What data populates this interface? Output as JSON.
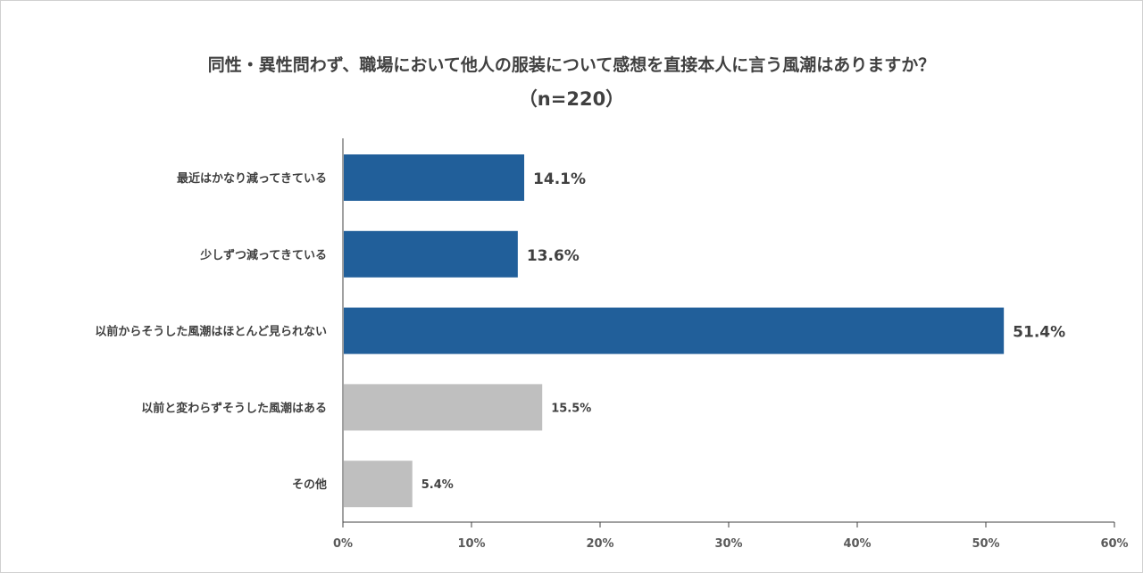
{
  "chart_data": {
    "type": "bar",
    "orientation": "horizontal",
    "title": "同性・異性問わず、職場において他人の服装について感想を直接本人に言う風潮はありますか？",
    "subtitle": "（n=220）",
    "categories": [
      "最近はかなり減ってきている",
      "少しずつ減ってきている",
      "以前からそうした風潮はほとんど見られない",
      "以前と変わらずそうした風潮はある",
      "その他"
    ],
    "values": [
      14.1,
      13.6,
      51.4,
      15.5,
      5.4
    ],
    "data_labels": [
      "14.1%",
      "13.6%",
      "51.4%",
      "15.5%",
      "5.4%"
    ],
    "bar_colors": [
      "#215f9a",
      "#215f9a",
      "#215f9a",
      "#bfbfbf",
      "#bfbfbf"
    ],
    "xlim": [
      0,
      60
    ],
    "xticks": [
      0,
      10,
      20,
      30,
      40,
      50,
      60
    ],
    "xtick_labels": [
      "0%",
      "10%",
      "20%",
      "30%",
      "40%",
      "50%",
      "60%"
    ],
    "xlabel": "",
    "ylabel": "",
    "grid": false,
    "legend": "none"
  }
}
